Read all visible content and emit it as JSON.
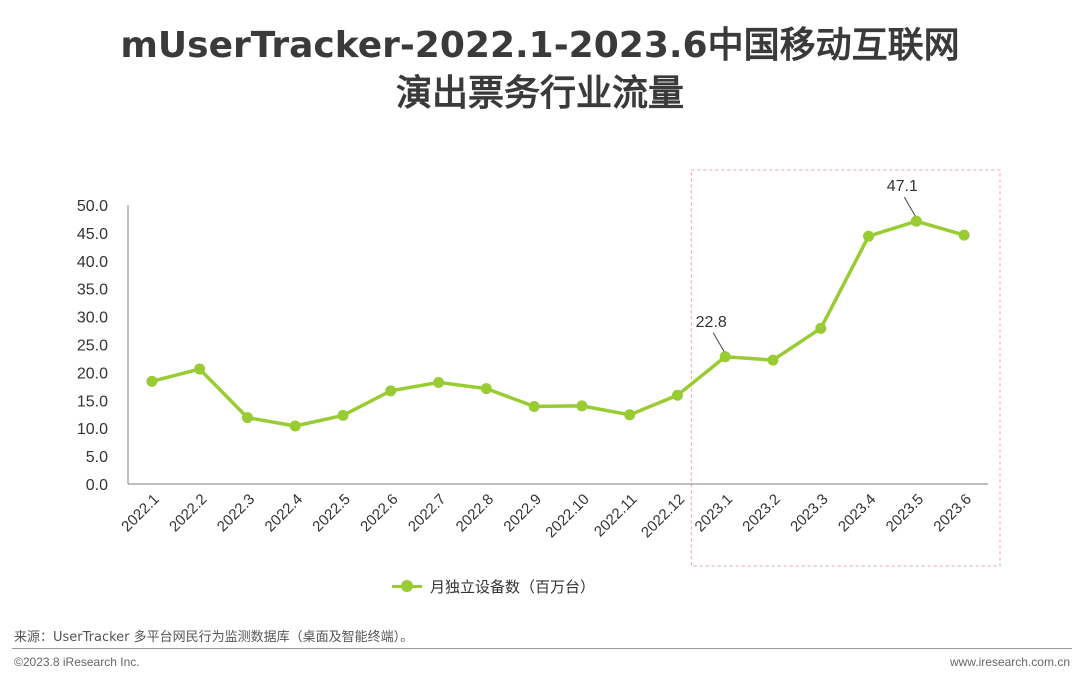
{
  "title": {
    "line1": "mUserTracker-2022.1-2023.6中国移动互联网",
    "line2": "演出票务行业流量"
  },
  "source": "来源：UserTracker 多平台网民行为监测数据库（桌面及智能终端）。",
  "footer": {
    "copyright": "©2023.8 iResearch Inc.",
    "website": "www.iresearch.com.cn"
  },
  "colors": {
    "series": "#99cc33",
    "highlight_box": "#f0a0a8",
    "axis": "#7f7f7f"
  },
  "chart_data": {
    "type": "line",
    "categories": [
      "2022.1",
      "2022.2",
      "2022.3",
      "2022.4",
      "2022.5",
      "2022.6",
      "2022.7",
      "2022.8",
      "2022.9",
      "2022.10",
      "2022.11",
      "2022.12",
      "2023.1",
      "2023.2",
      "2023.3",
      "2023.4",
      "2023.5",
      "2023.6"
    ],
    "series": [
      {
        "name": "月独立设备数（百万台）",
        "values": [
          18.4,
          20.6,
          11.9,
          10.4,
          12.3,
          16.7,
          18.2,
          17.1,
          13.9,
          14.0,
          12.4,
          15.9,
          22.8,
          22.2,
          27.9,
          44.4,
          47.1,
          44.6
        ]
      }
    ],
    "data_labels": [
      {
        "category": "2023.1",
        "text": "22.8"
      },
      {
        "category": "2023.5",
        "text": "47.1"
      }
    ],
    "ylim": [
      0,
      50
    ],
    "yticks": [
      "0.0",
      "5.0",
      "10.0",
      "15.0",
      "20.0",
      "25.0",
      "30.0",
      "35.0",
      "40.0",
      "45.0",
      "50.0"
    ],
    "highlight_range": [
      "2023.1",
      "2023.6"
    ],
    "grid": false,
    "legend_position": "bottom"
  }
}
